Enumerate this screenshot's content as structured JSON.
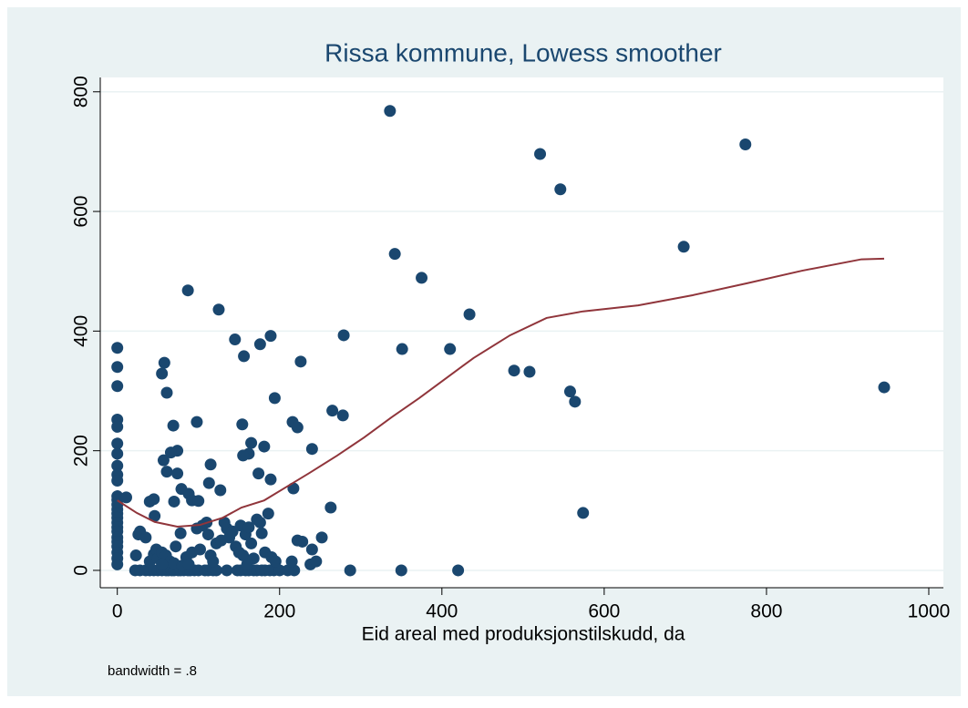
{
  "chart_data": {
    "type": "scatter",
    "title": "Rissa kommune, Lowess smoother",
    "x_label": "Eid areal med produksjonstilskudd, da",
    "note": "bandwidth = .8",
    "xlim": [
      -21,
      1018
    ],
    "ylim": [
      -29,
      824
    ],
    "xticks": [
      0,
      200,
      400,
      600,
      800,
      1000
    ],
    "yticks": [
      0,
      200,
      400,
      600,
      800
    ],
    "grid": true,
    "series": [
      {
        "type": "scatter",
        "color": "#1a476f",
        "x": [
          336,
          521,
          546,
          774,
          698,
          342,
          375,
          434,
          351,
          410,
          489,
          508,
          558,
          564,
          945,
          574,
          87,
          125,
          279,
          189,
          145,
          176,
          156,
          226,
          58,
          55,
          61,
          194,
          0,
          0,
          0,
          0,
          0,
          0,
          0,
          0,
          0,
          0,
          0,
          0,
          0,
          0,
          0,
          0,
          0,
          0,
          0,
          0,
          0,
          0,
          0,
          0,
          0,
          98,
          69,
          154,
          216,
          222,
          265,
          278,
          240,
          181,
          165,
          162,
          155,
          189,
          174,
          74,
          66,
          57,
          61,
          74,
          115,
          113,
          127,
          217,
          263,
          11,
          45,
          79,
          88,
          92,
          100,
          46,
          22,
          28,
          35,
          40,
          45,
          50,
          55,
          60,
          63,
          67,
          70,
          75,
          78,
          82,
          87,
          90,
          95,
          100,
          108,
          112,
          118,
          122,
          135,
          148,
          152,
          158,
          162,
          168,
          172,
          178,
          182,
          188,
          193,
          200,
          210,
          218,
          287,
          350,
          420,
          23,
          26,
          28,
          35,
          40,
          45,
          48,
          50,
          55,
          58,
          60,
          65,
          70,
          72,
          78,
          80,
          85,
          88,
          92,
          98,
          102,
          105,
          110,
          112,
          115,
          118,
          122,
          128,
          132,
          135,
          138,
          142,
          146,
          150,
          152,
          155,
          158,
          162,
          165,
          168,
          172,
          176,
          178,
          182,
          186,
          190,
          195,
          215,
          222,
          228,
          238,
          240,
          245,
          252,
          40,
          70,
          55,
          160
        ],
        "values": [
          768,
          696,
          637,
          712,
          541,
          529,
          489,
          428,
          370,
          370,
          334,
          332,
          299,
          282,
          306,
          96,
          468,
          436,
          393,
          392,
          386,
          378,
          358,
          349,
          347,
          329,
          297,
          288,
          372,
          340,
          308,
          252,
          240,
          212,
          195,
          175,
          160,
          150,
          124,
          118,
          110,
          102,
          95,
          88,
          80,
          72,
          65,
          55,
          48,
          40,
          30,
          20,
          10,
          248,
          242,
          244,
          248,
          239,
          267,
          259,
          203,
          207,
          213,
          195,
          192,
          152,
          162,
          200,
          197,
          184,
          165,
          162,
          177,
          146,
          134,
          137,
          105,
          122,
          119,
          136,
          128,
          117,
          116,
          91,
          0,
          0,
          0,
          0,
          0,
          0,
          0,
          0,
          0,
          0,
          0,
          0,
          0,
          0,
          0,
          0,
          0,
          0,
          0,
          0,
          0,
          0,
          0,
          0,
          0,
          0,
          0,
          0,
          0,
          0,
          0,
          0,
          0,
          0,
          0,
          0,
          0,
          0,
          0,
          25,
          60,
          65,
          55,
          15,
          27,
          35,
          20,
          30,
          10,
          25,
          15,
          12,
          40,
          62,
          8,
          22,
          10,
          30,
          70,
          35,
          75,
          80,
          60,
          25,
          15,
          45,
          50,
          80,
          70,
          55,
          65,
          40,
          30,
          75,
          25,
          60,
          72,
          45,
          20,
          85,
          80,
          62,
          30,
          95,
          22,
          15,
          15,
          50,
          48,
          10,
          35,
          15,
          55,
          115,
          115,
          10,
          10
        ]
      },
      {
        "type": "line",
        "color": "#90353b",
        "x": [
          0,
          24,
          46,
          74,
          102,
          130,
          153,
          181,
          209,
          237,
          271,
          304,
          338,
          372,
          406,
          439,
          484,
          529,
          574,
          642,
          709,
          776,
          844,
          917,
          945
        ],
        "values": [
          117,
          96,
          81,
          73,
          76,
          88,
          105,
          117,
          140,
          163,
          192,
          222,
          256,
          288,
          322,
          355,
          393,
          422,
          433,
          443,
          460,
          480,
          501,
          520,
          521
        ]
      }
    ]
  }
}
